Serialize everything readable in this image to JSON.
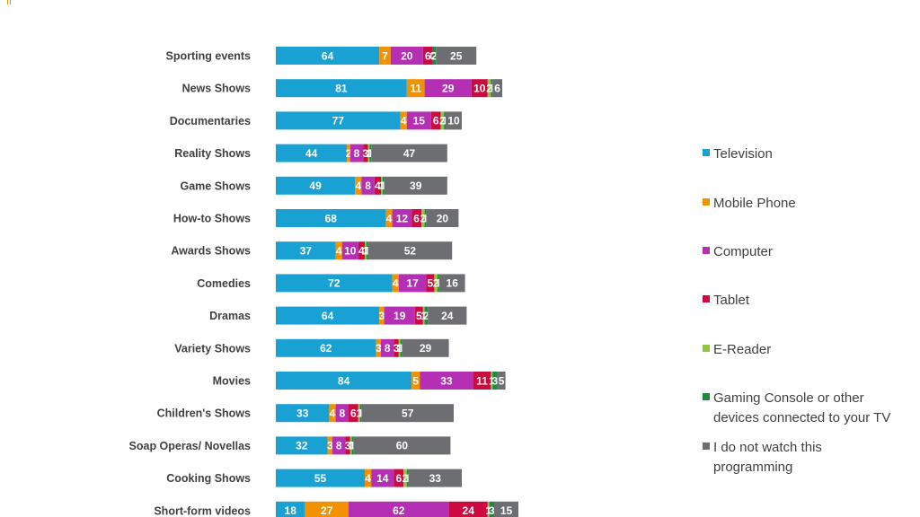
{
  "chart_data": {
    "type": "bar",
    "orientation": "horizontal",
    "stacked": true,
    "grid": false,
    "legend_position": "right",
    "categories": [
      "Sporting events",
      "News Shows",
      "Documentaries",
      "Reality Shows",
      "Game Shows",
      "How-to Shows",
      "Awards Shows",
      "Comedies",
      "Dramas",
      "Variety Shows",
      "Movies",
      "Children's Shows",
      "Soap Operas/ Novellas",
      "Cooking Shows",
      "Short-form videos"
    ],
    "series": [
      {
        "name": "Television",
        "color": "#1aa1d4",
        "values": [
          64,
          81,
          77,
          44,
          49,
          68,
          37,
          72,
          64,
          62,
          84,
          33,
          32,
          55,
          18
        ]
      },
      {
        "name": "Mobile Phone",
        "color": "#f39200",
        "values": [
          7,
          11,
          4,
          2,
          4,
          4,
          4,
          4,
          3,
          3,
          5,
          4,
          3,
          4,
          27
        ]
      },
      {
        "name": "Computer",
        "color": "#b52fb4",
        "values": [
          20,
          29,
          15,
          8,
          8,
          12,
          10,
          17,
          19,
          8,
          33,
          8,
          8,
          14,
          62
        ]
      },
      {
        "name": "Tablet",
        "color": "#cc0a3f",
        "values": [
          6,
          10,
          6,
          3,
          4,
          6,
          4,
          5,
          5,
          3,
          11,
          6,
          3,
          6,
          24
        ]
      },
      {
        "name": "E-Reader",
        "color": "#8cc63f",
        "values": [
          0,
          2,
          2,
          1,
          1,
          2,
          1,
          2,
          1,
          1,
          1,
          1,
          1,
          2,
          1
        ]
      },
      {
        "name": "Gaming Console or other devices connected to your TV",
        "color": "#1b8a3c",
        "values": [
          2,
          1,
          1,
          1,
          1,
          1,
          1,
          1,
          2,
          1,
          3,
          1,
          1,
          1,
          3
        ]
      },
      {
        "name": "I do not watch this programming",
        "color": "#6d6e71",
        "values": [
          25,
          6,
          10,
          47,
          39,
          20,
          52,
          16,
          24,
          29,
          5,
          57,
          60,
          33,
          15
        ]
      }
    ],
    "data_labels": [
      [
        "64",
        "7",
        "20",
        "6",
        "0",
        "2",
        "25"
      ],
      [
        "81",
        "11",
        "29",
        "10",
        "2",
        "1",
        "6"
      ],
      [
        "77",
        "4",
        "15",
        "6",
        "2",
        "1",
        "10"
      ],
      [
        "44",
        "2",
        "8",
        "3",
        "1",
        "1",
        "47"
      ],
      [
        "49",
        "4",
        "8",
        "4",
        "1",
        "1",
        "39"
      ],
      [
        "68",
        "4",
        "12",
        "6",
        "2",
        "1",
        "20"
      ],
      [
        "37",
        "4",
        "10",
        "4",
        "1",
        "1",
        "52"
      ],
      [
        "72",
        "4",
        "17",
        "5",
        "2",
        "1",
        "16"
      ],
      [
        "64",
        "3",
        "19",
        "5",
        "1",
        "2",
        "24"
      ],
      [
        "62",
        "3",
        "8",
        "3",
        "1",
        "1",
        "29"
      ],
      [
        "84",
        "5",
        "33",
        "11",
        "1",
        "3",
        "5"
      ],
      [
        "33",
        "4",
        "8",
        "6",
        "1",
        "1",
        "57"
      ],
      [
        "32",
        "3",
        "8",
        "3",
        "1",
        "1",
        "60"
      ],
      [
        "55",
        "4",
        "14",
        "6",
        "2",
        "1",
        "33"
      ],
      [
        "18",
        "27",
        "62",
        "24",
        "1",
        "3",
        "15"
      ]
    ]
  },
  "legend": [
    {
      "label": "Television",
      "color": "#1aa1d4"
    },
    {
      "label": "Mobile Phone",
      "color": "#f39200"
    },
    {
      "label": "Computer",
      "color": "#b52fb4"
    },
    {
      "label": "Tablet",
      "color": "#cc0a3f"
    },
    {
      "label": "E-Reader",
      "color": "#8cc63f"
    },
    {
      "label": "Gaming Console or other devices connected to your TV",
      "lines": [
        "Gaming Console or other",
        "devices connected to your TV"
      ],
      "color": "#1b8a3c"
    },
    {
      "label": "I do not watch this programming",
      "lines": [
        "I do not watch this",
        "programming"
      ],
      "color": "#6d6e71"
    }
  ]
}
